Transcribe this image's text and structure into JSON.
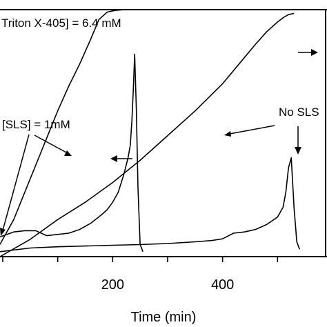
{
  "chart_data": {
    "type": "line",
    "xlabel": "Time (min)",
    "ylabel": "",
    "xlim": [
      -5,
      590
    ],
    "ylim": [
      0,
      100
    ],
    "x_ticks": [
      0,
      100,
      200,
      300,
      400,
      500
    ],
    "x_tick_labels": [
      {
        "x": 200,
        "label": "200"
      },
      {
        "x": 400,
        "label": "400"
      }
    ],
    "grid": false,
    "legend": "none",
    "annotations": [
      {
        "id": "triton",
        "text": "Triton X-405] = 6.4 mM"
      },
      {
        "id": "sls1",
        "text": "[SLS] = 1mM"
      },
      {
        "id": "nosls",
        "text": "No SLS"
      }
    ],
    "series": [
      {
        "id": "conv_sls",
        "x": [
          -5,
          20,
          40,
          60,
          80,
          100,
          120,
          140,
          160,
          175,
          190,
          200,
          205,
          210,
          215,
          220,
          228
        ],
        "y": [
          5,
          15,
          26,
          37,
          48,
          59,
          69,
          78,
          88,
          96,
          99,
          99.5,
          99.7,
          99.8,
          99.9,
          100,
          100
        ]
      },
      {
        "id": "conv_nosls",
        "x": [
          -5,
          50,
          100,
          150,
          200,
          250,
          300,
          350,
          400,
          430,
          460,
          480,
          500,
          512,
          520,
          530
        ],
        "y": [
          0,
          7,
          15,
          22,
          30,
          39,
          49,
          59,
          70,
          78,
          86,
          91,
          95,
          97,
          98,
          98.5
        ]
      },
      {
        "id": "rate_sls",
        "x": [
          -5,
          20,
          40,
          60,
          80,
          100,
          120,
          140,
          160,
          180,
          190,
          200,
          210,
          220,
          228,
          232,
          235,
          238,
          240,
          243,
          246,
          250,
          255
        ],
        "y": [
          8,
          10,
          10.5,
          10.5,
          8.5,
          9,
          9.5,
          11,
          13.5,
          17,
          19,
          22,
          26,
          33,
          40,
          45,
          55,
          70,
          82,
          60,
          28,
          5,
          2
        ]
      },
      {
        "id": "rate_nosls",
        "x": [
          -5,
          50,
          100,
          150,
          200,
          250,
          300,
          350,
          380,
          400,
          420,
          440,
          460,
          480,
          500,
          510,
          515,
          520,
          525,
          530,
          535,
          540
        ],
        "y": [
          2,
          3.5,
          4,
          4.3,
          4.6,
          4.9,
          5.3,
          6,
          6.5,
          7.2,
          9.5,
          10,
          11,
          13,
          16,
          20,
          26,
          36,
          40,
          20,
          6,
          3
        ]
      }
    ]
  }
}
